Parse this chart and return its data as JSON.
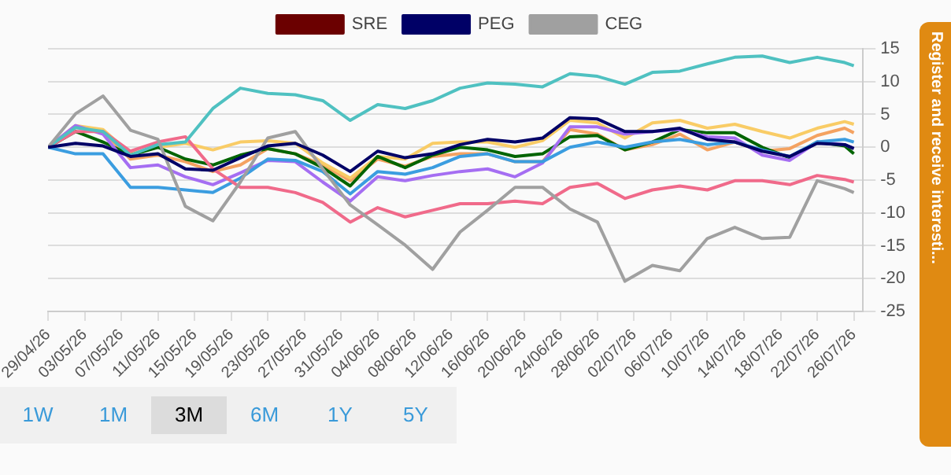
{
  "chart_data": {
    "type": "line",
    "x": [
      "--04-29",
      "--05-02",
      "--05-05",
      "--05-08",
      "--05-11",
      "--05-14",
      "--05-17",
      "--05-20",
      "--05-23",
      "--05-26",
      "--05-29",
      "--06-01",
      "--06-04",
      "--06-07",
      "--06-10",
      "--06-13",
      "--06-16",
      "--06-19",
      "--06-22",
      "--06-25",
      "--06-28",
      "--07-01",
      "--07-04",
      "--07-07",
      "--07-10",
      "--07-13",
      "--07-16",
      "--07-19",
      "--07-22",
      "--07-25",
      "--07-26"
    ],
    "series": [
      {
        "name": "SRE",
        "color": "#6b0000",
        "values": [
          null,
          null,
          null,
          null,
          null,
          null,
          null,
          null,
          null,
          null,
          null,
          null,
          null,
          null,
          null,
          null,
          null,
          null,
          null,
          null,
          null,
          null,
          null,
          null,
          null,
          null,
          null,
          null,
          null,
          null,
          null
        ]
      },
      {
        "name": "PEG",
        "color": "#000066",
        "values": [
          0,
          0.6,
          0.2,
          -1.4,
          -1,
          -3.3,
          -3.5,
          -1.6,
          0.2,
          0.6,
          -1.2,
          -3.7,
          -0.6,
          -1.6,
          -1,
          0.4,
          1.2,
          0.8,
          1.4,
          4.5,
          4.3,
          2.4,
          2.4,
          2.9,
          1.2,
          0.8,
          -0.6,
          -1.4,
          0.6,
          0.4,
          -0.2
        ]
      },
      {
        "name": "CEG",
        "color": "#a0a0a0",
        "values": [
          0,
          5.1,
          7.8,
          2.6,
          1.2,
          -9,
          -11.2,
          -5.3,
          1.4,
          2.4,
          -3.3,
          -8.8,
          -11.8,
          -14.9,
          -18.6,
          -12.9,
          -9.6,
          -6.1,
          -6.1,
          -9.4,
          -11.4,
          -20.4,
          -18,
          -18.8,
          -13.9,
          -12.2,
          -13.9,
          -13.7,
          -5.1,
          -6.3,
          -6.9
        ]
      },
      {
        "color": "#4fc1c1",
        "values": [
          0,
          3,
          2.4,
          -1.2,
          0.4,
          0.8,
          5.9,
          9,
          8.2,
          8,
          7.1,
          4.1,
          6.5,
          5.9,
          7.1,
          9,
          9.8,
          9.6,
          9.2,
          11.2,
          10.8,
          9.6,
          11.4,
          11.6,
          12.7,
          13.7,
          13.9,
          12.9,
          13.7,
          12.9,
          12.4
        ]
      },
      {
        "color": "#f06a8a",
        "values": [
          0,
          2.4,
          2.4,
          -0.6,
          0.8,
          1.6,
          -3.3,
          -6.1,
          -6.1,
          -6.9,
          -8.4,
          -11.4,
          -9.2,
          -10.6,
          -9.6,
          -8.6,
          -8.6,
          -8.2,
          -8.6,
          -6.1,
          -5.5,
          -7.8,
          -6.5,
          -5.9,
          -6.5,
          -5.1,
          -5.1,
          -5.7,
          -4.3,
          -4.9,
          -5.3
        ]
      },
      {
        "color": "#3b9de0",
        "values": [
          0,
          -1,
          -1,
          -6.1,
          -6.1,
          -6.5,
          -6.9,
          -4.7,
          -1.8,
          -2,
          -3.7,
          -7.1,
          -3.7,
          -4.1,
          -3.1,
          -1.4,
          -1,
          -2.2,
          -2.2,
          0,
          0.8,
          0,
          0.8,
          1.2,
          0.4,
          0.8,
          -0.4,
          -1.4,
          0.8,
          1.2,
          0.8
        ]
      },
      {
        "color": "#a56ef2",
        "values": [
          0,
          3.3,
          2,
          -3.1,
          -2.7,
          -4.5,
          -5.7,
          -3.9,
          -2,
          -2.2,
          -5.3,
          -8.2,
          -4.5,
          -5.1,
          -4.3,
          -3.7,
          -3.3,
          -4.5,
          -2.4,
          3.1,
          3.1,
          2,
          2.4,
          2.7,
          1.6,
          1.4,
          -1.2,
          -2,
          0.8,
          0.4,
          -0.2
        ]
      },
      {
        "color": "#006400",
        "values": [
          0,
          2.4,
          0.8,
          -1.2,
          0,
          -1.8,
          -2.7,
          -1.2,
          -0.2,
          -1,
          -3.1,
          -5.9,
          -1.4,
          -3.1,
          -1.2,
          0,
          -0.4,
          -1.4,
          -1,
          1.6,
          1.8,
          -0.4,
          0.8,
          2.7,
          2.2,
          2.2,
          0,
          -1.6,
          0.8,
          0.2,
          -1
        ]
      },
      {
        "color": "#f9cc66",
        "values": [
          0,
          3.3,
          2.7,
          -1,
          0,
          0.6,
          -0.4,
          0.8,
          1,
          0.6,
          -2.4,
          -4.7,
          -1.4,
          -1.8,
          0.6,
          0.8,
          0.8,
          0,
          1,
          4.1,
          3.7,
          1.4,
          3.7,
          4.1,
          2.9,
          3.5,
          2.4,
          1.4,
          2.9,
          3.9,
          3.5
        ]
      },
      {
        "color": "#f4a261",
        "values": [
          0,
          3.1,
          2.4,
          -1.8,
          -1.2,
          -2.2,
          -3.7,
          -2.7,
          -0.2,
          -1,
          -2.7,
          -5.1,
          -1.8,
          -2.9,
          -1.4,
          -1,
          -1,
          -2.2,
          -2.2,
          2.7,
          2,
          -0.4,
          0.4,
          2,
          -0.4,
          0.8,
          -0.6,
          -0.2,
          1.8,
          2.9,
          2.2
        ]
      }
    ],
    "xlim": [
      "--04-29",
      "--07-27"
    ],
    "xticks": [
      {
        "value": "--04-29",
        "label": "29/04/26"
      },
      {
        "value": "--05-03",
        "label": "03/05/26"
      },
      {
        "value": "--05-07",
        "label": "07/05/26"
      },
      {
        "value": "--05-11",
        "label": "11/05/26"
      },
      {
        "value": "--05-15",
        "label": "15/05/26"
      },
      {
        "value": "--05-19",
        "label": "19/05/26"
      },
      {
        "value": "--05-23",
        "label": "23/05/26"
      },
      {
        "value": "--05-27",
        "label": "27/05/26"
      },
      {
        "value": "--05-31",
        "label": "31/05/26"
      },
      {
        "value": "--06-04",
        "label": "04/06/26"
      },
      {
        "value": "--06-08",
        "label": "08/06/26"
      },
      {
        "value": "--06-12",
        "label": "12/06/26"
      },
      {
        "value": "--06-16",
        "label": "16/06/26"
      },
      {
        "value": "--06-20",
        "label": "20/06/26"
      },
      {
        "value": "--06-24",
        "label": "24/06/26"
      },
      {
        "value": "--06-28",
        "label": "28/06/26"
      },
      {
        "value": "--07-02",
        "label": "02/07/26"
      },
      {
        "value": "--07-06",
        "label": "06/07/26"
      },
      {
        "value": "--07-10",
        "label": "10/07/26"
      },
      {
        "value": "--07-14",
        "label": "14/07/26"
      },
      {
        "value": "--07-18",
        "label": "18/07/26"
      },
      {
        "value": "--07-22",
        "label": "22/07/26"
      },
      {
        "value": "--07-26",
        "label": "26/07/26"
      }
    ],
    "ylim": [
      -25,
      15
    ],
    "yticks": [
      15,
      10,
      5,
      0,
      -5,
      -10,
      -15,
      -20,
      -25
    ],
    "grid": "y",
    "legend": "top",
    "annotations": [
      "1W",
      "1M",
      "3M",
      "6M",
      "1Y",
      "5Y",
      "Register and receive interesti..."
    ]
  }
}
